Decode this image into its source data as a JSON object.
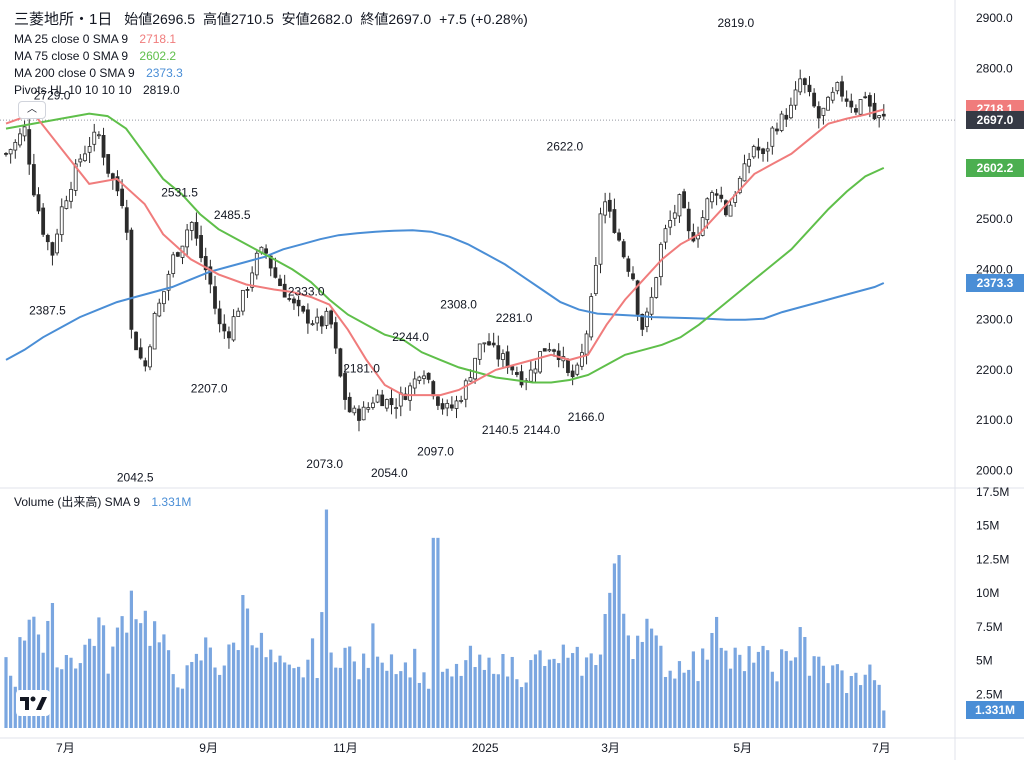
{
  "header": {
    "symbol": "三菱地所・1日",
    "open_label": "始値",
    "open": "2696.5",
    "high_label": "高値",
    "high": "2710.5",
    "low_label": "安値",
    "low": "2682.0",
    "close_label": "終値",
    "close": "2697.0",
    "change": "+7.5 (+0.28%)"
  },
  "legend": [
    {
      "label": "MA 25 close 0 SMA 9",
      "value": "2718.1",
      "color": "#f07c7c"
    },
    {
      "label": "MA 75 close 0 SMA 9",
      "value": "2602.2",
      "color": "#5fbf4a"
    },
    {
      "label": "MA 200 close 0 SMA 9",
      "value": "2373.3",
      "color": "#4a8ed6"
    },
    {
      "label": "Pivots HL 10 10 10 10",
      "value": "2819.0",
      "color": "#131722"
    }
  ],
  "volume_legend": {
    "label": "Volume (出来高) SMA 9",
    "value": "1.331M",
    "color": "#4a8ed6"
  },
  "price_axis": [
    "2900.0",
    "2800.0",
    "2700.0",
    "2600.0",
    "2500.0",
    "2400.0",
    "2300.0",
    "2200.0",
    "2100.0",
    "2000.0"
  ],
  "volume_axis": [
    "17.5M",
    "15M",
    "12.5M",
    "10M",
    "7.5M",
    "5M",
    "2.5M"
  ],
  "time_axis": [
    "7月",
    "9月",
    "11月",
    "2025",
    "3月",
    "5月",
    "7月"
  ],
  "badges": [
    {
      "text": "2718.1",
      "color": "#f07c7c",
      "value": 2718.1
    },
    {
      "text": "2697.0",
      "color": "#363a45",
      "value": 2697.0
    },
    {
      "text": "2602.2",
      "color": "#4caf50",
      "value": 2602.2
    },
    {
      "text": "2373.3",
      "color": "#4a8ed6",
      "value": 2373.3
    }
  ],
  "volume_badge": {
    "text": "1.331M",
    "color": "#4a8ed6"
  },
  "pivots": [
    {
      "text": "2729.0",
      "x": 0.03,
      "y": 2738
    },
    {
      "text": "2387.5",
      "x": 0.025,
      "y": 2310
    },
    {
      "text": "2531.5",
      "x": 0.168,
      "y": 2545
    },
    {
      "text": "2485.5",
      "x": 0.225,
      "y": 2500
    },
    {
      "text": "2042.5",
      "x": 0.12,
      "y": 1978
    },
    {
      "text": "2207.0",
      "x": 0.2,
      "y": 2155
    },
    {
      "text": "2333.0",
      "x": 0.305,
      "y": 2348
    },
    {
      "text": "2181.0",
      "x": 0.365,
      "y": 2195
    },
    {
      "text": "2073.0",
      "x": 0.325,
      "y": 2005
    },
    {
      "text": "2244.0",
      "x": 0.418,
      "y": 2258
    },
    {
      "text": "2054.0",
      "x": 0.395,
      "y": 1987
    },
    {
      "text": "2308.0",
      "x": 0.47,
      "y": 2322
    },
    {
      "text": "2097.0",
      "x": 0.445,
      "y": 2030
    },
    {
      "text": "2281.0",
      "x": 0.53,
      "y": 2295
    },
    {
      "text": "2140.5",
      "x": 0.515,
      "y": 2073
    },
    {
      "text": "2144.0",
      "x": 0.56,
      "y": 2073
    },
    {
      "text": "2622.0",
      "x": 0.585,
      "y": 2637
    },
    {
      "text": "2166.0",
      "x": 0.608,
      "y": 2098
    },
    {
      "text": "2819.0",
      "x": 0.77,
      "y": 2882
    }
  ],
  "chart_data": {
    "type": "candlestick",
    "colors": {
      "up": "#2b2b2b",
      "down": "#2b2b2b",
      "ma25": "#f07c7c",
      "ma75": "#5fbf4a",
      "ma200": "#4a8ed6",
      "volume": "#7aa6e0"
    },
    "ylim": [
      1960,
      2920
    ],
    "volume_ylim": [
      0,
      17500000
    ],
    "anchors": [
      [
        0.0,
        2630
      ],
      [
        0.01,
        2650
      ],
      [
        0.02,
        2680
      ],
      [
        0.03,
        2560
      ],
      [
        0.04,
        2480
      ],
      [
        0.05,
        2430
      ],
      [
        0.06,
        2520
      ],
      [
        0.07,
        2570
      ],
      [
        0.08,
        2620
      ],
      [
        0.09,
        2650
      ],
      [
        0.1,
        2670
      ],
      [
        0.11,
        2600
      ],
      [
        0.12,
        2560
      ],
      [
        0.13,
        2520
      ],
      [
        0.135,
        2280
      ],
      [
        0.15,
        2200
      ],
      [
        0.16,
        2300
      ],
      [
        0.17,
        2350
      ],
      [
        0.18,
        2420
      ],
      [
        0.19,
        2450
      ],
      [
        0.2,
        2500
      ],
      [
        0.21,
        2430
      ],
      [
        0.22,
        2380
      ],
      [
        0.23,
        2290
      ],
      [
        0.24,
        2270
      ],
      [
        0.25,
        2320
      ],
      [
        0.26,
        2360
      ],
      [
        0.27,
        2420
      ],
      [
        0.28,
        2440
      ],
      [
        0.29,
        2390
      ],
      [
        0.3,
        2360
      ],
      [
        0.31,
        2330
      ],
      [
        0.32,
        2310
      ],
      [
        0.33,
        2300
      ],
      [
        0.34,
        2290
      ],
      [
        0.35,
        2310
      ],
      [
        0.36,
        2200
      ],
      [
        0.37,
        2120
      ],
      [
        0.38,
        2110
      ],
      [
        0.39,
        2120
      ],
      [
        0.4,
        2150
      ],
      [
        0.41,
        2140
      ],
      [
        0.42,
        2130
      ],
      [
        0.43,
        2150
      ],
      [
        0.44,
        2170
      ],
      [
        0.45,
        2210
      ],
      [
        0.46,
        2170
      ],
      [
        0.47,
        2130
      ],
      [
        0.48,
        2120
      ],
      [
        0.49,
        2140
      ],
      [
        0.5,
        2180
      ],
      [
        0.51,
        2240
      ],
      [
        0.52,
        2260
      ],
      [
        0.53,
        2230
      ],
      [
        0.54,
        2220
      ],
      [
        0.55,
        2200
      ],
      [
        0.56,
        2180
      ],
      [
        0.57,
        2200
      ],
      [
        0.58,
        2240
      ],
      [
        0.59,
        2250
      ],
      [
        0.6,
        2230
      ],
      [
        0.61,
        2180
      ],
      [
        0.62,
        2200
      ],
      [
        0.63,
        2290
      ],
      [
        0.64,
        2420
      ],
      [
        0.645,
        2560
      ],
      [
        0.65,
        2520
      ],
      [
        0.66,
        2480
      ],
      [
        0.67,
        2420
      ],
      [
        0.68,
        2380
      ],
      [
        0.685,
        2300
      ],
      [
        0.69,
        2280
      ],
      [
        0.7,
        2350
      ],
      [
        0.71,
        2460
      ],
      [
        0.72,
        2500
      ],
      [
        0.73,
        2540
      ],
      [
        0.74,
        2460
      ],
      [
        0.75,
        2480
      ],
      [
        0.76,
        2540
      ],
      [
        0.77,
        2560
      ],
      [
        0.78,
        2510
      ],
      [
        0.79,
        2560
      ],
      [
        0.8,
        2600
      ],
      [
        0.81,
        2650
      ],
      [
        0.82,
        2620
      ],
      [
        0.83,
        2680
      ],
      [
        0.84,
        2700
      ],
      [
        0.85,
        2720
      ],
      [
        0.86,
        2780
      ],
      [
        0.87,
        2740
      ],
      [
        0.88,
        2700
      ],
      [
        0.89,
        2730
      ],
      [
        0.9,
        2760
      ],
      [
        0.91,
        2740
      ],
      [
        0.92,
        2720
      ],
      [
        0.93,
        2750
      ],
      [
        0.94,
        2700
      ],
      [
        0.95,
        2700
      ]
    ],
    "ma25": [
      [
        0.0,
        2690
      ],
      [
        0.03,
        2710
      ],
      [
        0.06,
        2640
      ],
      [
        0.09,
        2570
      ],
      [
        0.12,
        2580
      ],
      [
        0.15,
        2530
      ],
      [
        0.17,
        2470
      ],
      [
        0.2,
        2420
      ],
      [
        0.23,
        2390
      ],
      [
        0.26,
        2370
      ],
      [
        0.29,
        2360
      ],
      [
        0.31,
        2355
      ],
      [
        0.33,
        2345
      ],
      [
        0.35,
        2330
      ],
      [
        0.37,
        2280
      ],
      [
        0.39,
        2220
      ],
      [
        0.41,
        2170
      ],
      [
        0.43,
        2150
      ],
      [
        0.45,
        2150
      ],
      [
        0.47,
        2150
      ],
      [
        0.49,
        2160
      ],
      [
        0.51,
        2180
      ],
      [
        0.53,
        2200
      ],
      [
        0.55,
        2210
      ],
      [
        0.57,
        2220
      ],
      [
        0.59,
        2230
      ],
      [
        0.61,
        2220
      ],
      [
        0.63,
        2230
      ],
      [
        0.65,
        2290
      ],
      [
        0.67,
        2340
      ],
      [
        0.69,
        2380
      ],
      [
        0.71,
        2420
      ],
      [
        0.73,
        2450
      ],
      [
        0.75,
        2470
      ],
      [
        0.77,
        2510
      ],
      [
        0.79,
        2550
      ],
      [
        0.81,
        2590
      ],
      [
        0.83,
        2610
      ],
      [
        0.85,
        2630
      ],
      [
        0.87,
        2660
      ],
      [
        0.89,
        2690
      ],
      [
        0.91,
        2700
      ],
      [
        0.93,
        2708
      ],
      [
        0.95,
        2718
      ]
    ],
    "ma75": [
      [
        0.0,
        2680
      ],
      [
        0.03,
        2690
      ],
      [
        0.06,
        2700
      ],
      [
        0.09,
        2710
      ],
      [
        0.11,
        2705
      ],
      [
        0.13,
        2680
      ],
      [
        0.15,
        2630
      ],
      [
        0.17,
        2580
      ],
      [
        0.19,
        2550
      ],
      [
        0.21,
        2510
      ],
      [
        0.23,
        2480
      ],
      [
        0.25,
        2460
      ],
      [
        0.27,
        2440
      ],
      [
        0.29,
        2420
      ],
      [
        0.31,
        2400
      ],
      [
        0.33,
        2375
      ],
      [
        0.35,
        2340
      ],
      [
        0.36,
        2325
      ],
      [
        0.37,
        2310
      ],
      [
        0.39,
        2290
      ],
      [
        0.41,
        2270
      ],
      [
        0.43,
        2260
      ],
      [
        0.45,
        2235
      ],
      [
        0.47,
        2220
      ],
      [
        0.49,
        2205
      ],
      [
        0.51,
        2195
      ],
      [
        0.53,
        2185
      ],
      [
        0.55,
        2180
      ],
      [
        0.57,
        2175
      ],
      [
        0.59,
        2175
      ],
      [
        0.61,
        2180
      ],
      [
        0.63,
        2190
      ],
      [
        0.65,
        2210
      ],
      [
        0.67,
        2230
      ],
      [
        0.69,
        2240
      ],
      [
        0.71,
        2250
      ],
      [
        0.73,
        2265
      ],
      [
        0.75,
        2290
      ],
      [
        0.77,
        2320
      ],
      [
        0.79,
        2350
      ],
      [
        0.81,
        2380
      ],
      [
        0.83,
        2410
      ],
      [
        0.85,
        2440
      ],
      [
        0.87,
        2480
      ],
      [
        0.89,
        2520
      ],
      [
        0.91,
        2555
      ],
      [
        0.93,
        2585
      ],
      [
        0.95,
        2602
      ]
    ],
    "ma200": [
      [
        0.0,
        2220
      ],
      [
        0.02,
        2240
      ],
      [
        0.04,
        2265
      ],
      [
        0.06,
        2285
      ],
      [
        0.08,
        2305
      ],
      [
        0.1,
        2320
      ],
      [
        0.12,
        2335
      ],
      [
        0.14,
        2345
      ],
      [
        0.16,
        2355
      ],
      [
        0.18,
        2365
      ],
      [
        0.2,
        2380
      ],
      [
        0.22,
        2395
      ],
      [
        0.24,
        2405
      ],
      [
        0.26,
        2415
      ],
      [
        0.28,
        2425
      ],
      [
        0.3,
        2440
      ],
      [
        0.32,
        2450
      ],
      [
        0.34,
        2460
      ],
      [
        0.36,
        2468
      ],
      [
        0.38,
        2472
      ],
      [
        0.4,
        2475
      ],
      [
        0.42,
        2477
      ],
      [
        0.44,
        2478
      ],
      [
        0.46,
        2475
      ],
      [
        0.48,
        2465
      ],
      [
        0.5,
        2450
      ],
      [
        0.52,
        2430
      ],
      [
        0.54,
        2410
      ],
      [
        0.56,
        2385
      ],
      [
        0.58,
        2360
      ],
      [
        0.6,
        2335
      ],
      [
        0.62,
        2320
      ],
      [
        0.64,
        2312
      ],
      [
        0.66,
        2310
      ],
      [
        0.68,
        2308
      ],
      [
        0.7,
        2305
      ],
      [
        0.72,
        2304
      ],
      [
        0.74,
        2303
      ],
      [
        0.76,
        2302
      ],
      [
        0.78,
        2300
      ],
      [
        0.8,
        2300
      ],
      [
        0.82,
        2302
      ],
      [
        0.84,
        2315
      ],
      [
        0.86,
        2325
      ],
      [
        0.88,
        2335
      ],
      [
        0.9,
        2345
      ],
      [
        0.92,
        2355
      ],
      [
        0.94,
        2365
      ],
      [
        0.95,
        2373
      ]
    ],
    "volume": [
      [
        0.0,
        5.2
      ],
      [
        0.01,
        3.8
      ],
      [
        0.02,
        7.5
      ],
      [
        0.03,
        9.8
      ],
      [
        0.04,
        5.5
      ],
      [
        0.05,
        7.6
      ],
      [
        0.06,
        4.5
      ],
      [
        0.07,
        6.0
      ],
      [
        0.08,
        4.8
      ],
      [
        0.09,
        6.5
      ],
      [
        0.1,
        7.8
      ],
      [
        0.11,
        5.0
      ],
      [
        0.12,
        6.2
      ],
      [
        0.13,
        9.2
      ],
      [
        0.14,
        10.0
      ],
      [
        0.15,
        8.0
      ],
      [
        0.16,
        7.2
      ],
      [
        0.17,
        5.8
      ],
      [
        0.18,
        4.2
      ],
      [
        0.19,
        3.6
      ],
      [
        0.2,
        4.0
      ],
      [
        0.21,
        5.2
      ],
      [
        0.22,
        6.3
      ],
      [
        0.23,
        4.5
      ],
      [
        0.24,
        5.0
      ],
      [
        0.25,
        6.6
      ],
      [
        0.26,
        10.0
      ],
      [
        0.27,
        7.0
      ],
      [
        0.28,
        5.4
      ],
      [
        0.29,
        4.8
      ],
      [
        0.3,
        4.2
      ],
      [
        0.31,
        3.8
      ],
      [
        0.32,
        4.1
      ],
      [
        0.33,
        5.5
      ],
      [
        0.34,
        4.6
      ],
      [
        0.345,
        16.2
      ],
      [
        0.35,
        5.0
      ],
      [
        0.36,
        6.0
      ],
      [
        0.37,
        5.6
      ],
      [
        0.38,
        4.2
      ],
      [
        0.39,
        4.6
      ],
      [
        0.4,
        7.2
      ],
      [
        0.41,
        5.0
      ],
      [
        0.42,
        5.6
      ],
      [
        0.43,
        4.2
      ],
      [
        0.44,
        5.2
      ],
      [
        0.45,
        4.0
      ],
      [
        0.46,
        3.2
      ],
      [
        0.465,
        14.1
      ],
      [
        0.47,
        3.8
      ],
      [
        0.48,
        3.6
      ],
      [
        0.49,
        4.2
      ],
      [
        0.5,
        5.0
      ],
      [
        0.51,
        4.6
      ],
      [
        0.52,
        4.0
      ],
      [
        0.53,
        5.6
      ],
      [
        0.54,
        4.2
      ],
      [
        0.55,
        4.8
      ],
      [
        0.56,
        3.8
      ],
      [
        0.57,
        4.6
      ],
      [
        0.58,
        5.4
      ],
      [
        0.59,
        4.0
      ],
      [
        0.6,
        5.8
      ],
      [
        0.61,
        4.4
      ],
      [
        0.62,
        5.0
      ],
      [
        0.63,
        4.6
      ],
      [
        0.64,
        5.6
      ],
      [
        0.65,
        8.6
      ],
      [
        0.66,
        12.2
      ],
      [
        0.67,
        8.0
      ],
      [
        0.68,
        6.2
      ],
      [
        0.69,
        8.8
      ],
      [
        0.7,
        6.0
      ],
      [
        0.71,
        5.2
      ],
      [
        0.72,
        4.2
      ],
      [
        0.73,
        4.8
      ],
      [
        0.74,
        5.6
      ],
      [
        0.75,
        3.8
      ],
      [
        0.76,
        6.4
      ],
      [
        0.77,
        10.0
      ],
      [
        0.78,
        4.8
      ],
      [
        0.79,
        5.2
      ],
      [
        0.8,
        4.0
      ],
      [
        0.81,
        6.2
      ],
      [
        0.82,
        5.0
      ],
      [
        0.83,
        4.2
      ],
      [
        0.84,
        5.0
      ],
      [
        0.85,
        4.4
      ],
      [
        0.86,
        8.8
      ],
      [
        0.87,
        4.2
      ],
      [
        0.88,
        4.8
      ],
      [
        0.89,
        3.8
      ],
      [
        0.9,
        4.4
      ],
      [
        0.91,
        3.2
      ],
      [
        0.92,
        3.6
      ],
      [
        0.93,
        4.2
      ],
      [
        0.94,
        4.0
      ],
      [
        0.95,
        1.3
      ]
    ]
  }
}
